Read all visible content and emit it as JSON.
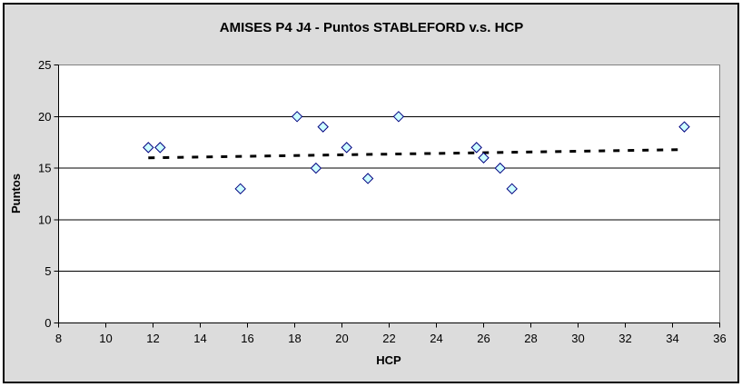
{
  "window": {
    "background_color": "#DCDCDC",
    "frame_border_color": "#000000",
    "plot_background_color": "#FFFFFF",
    "plot_border_color": "#808080",
    "gridline_color": "#000000",
    "axis_color": "#000000"
  },
  "chart_data": {
    "type": "scatter",
    "title": "AMISES P4 J4 - Puntos STABLEFORD v.s. HCP",
    "xlabel": "HCP",
    "ylabel": "Puntos",
    "xlim": [
      8,
      36
    ],
    "ylim": [
      0,
      25
    ],
    "x_ticks": [
      8,
      10,
      12,
      14,
      16,
      18,
      20,
      22,
      24,
      26,
      28,
      30,
      32,
      34,
      36
    ],
    "y_ticks": [
      0,
      5,
      10,
      15,
      20,
      25
    ],
    "grid": "horizontal-major",
    "legend": "none",
    "series": [
      {
        "marker": "diamond",
        "marker_fill": "#CCFFFF",
        "marker_stroke": "#000080",
        "points": [
          [
            11.8,
            17
          ],
          [
            12.3,
            17
          ],
          [
            15.7,
            13
          ],
          [
            18.1,
            20
          ],
          [
            18.9,
            15
          ],
          [
            19.2,
            19
          ],
          [
            20.2,
            17
          ],
          [
            21.1,
            14
          ],
          [
            22.4,
            20
          ],
          [
            25.7,
            17
          ],
          [
            26.0,
            16
          ],
          [
            26.7,
            15
          ],
          [
            27.2,
            13
          ],
          [
            34.5,
            19
          ]
        ]
      }
    ],
    "trendline": {
      "style": "dashed",
      "color": "#000000",
      "x_start": 11.8,
      "y_start": 16.0,
      "x_end": 34.5,
      "y_end": 16.8
    }
  }
}
